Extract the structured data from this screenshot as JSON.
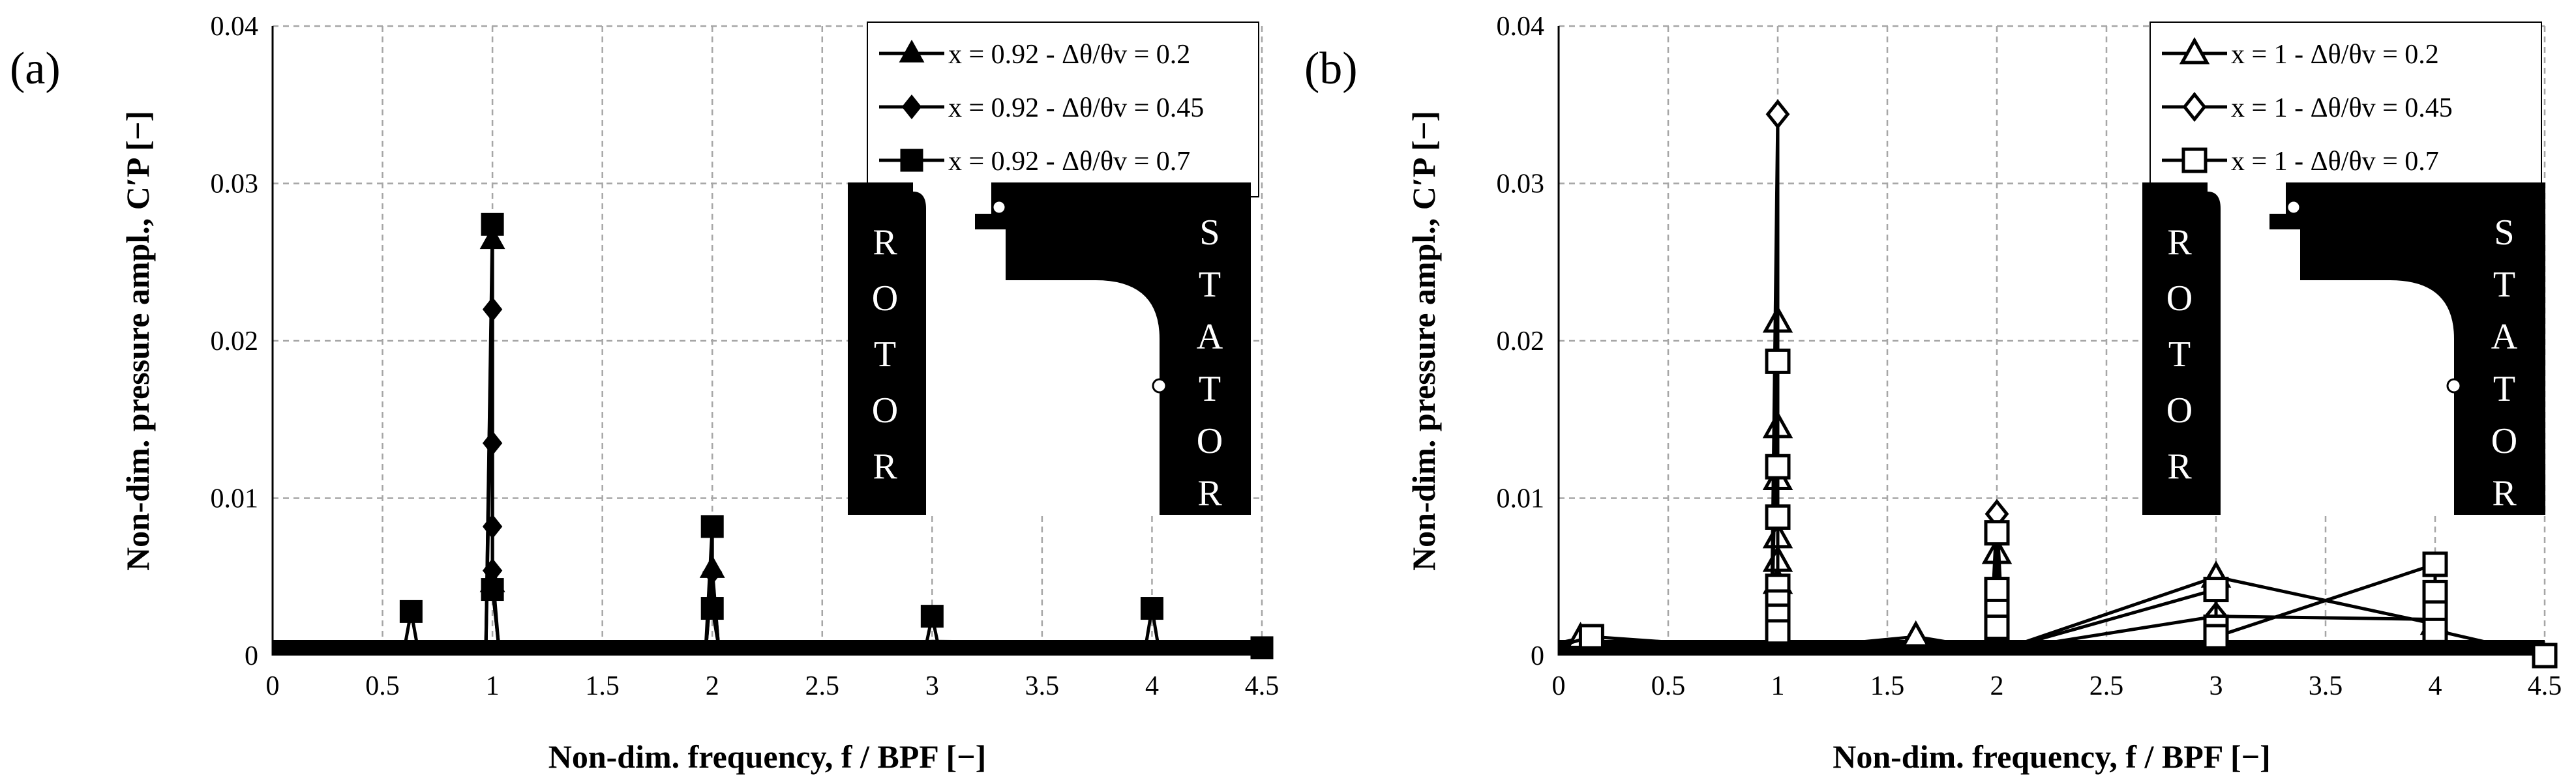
{
  "panels": [
    {
      "label": "(a)",
      "marker_fill": "filled",
      "inset": {
        "rotor_letters": [
          "R",
          "O",
          "T",
          "O",
          "R"
        ],
        "stator_letters": [
          "S",
          "T",
          "A",
          "T",
          "O",
          "R"
        ]
      }
    },
    {
      "label": "(b)",
      "marker_fill": "open",
      "inset": {
        "rotor_letters": [
          "R",
          "O",
          "T",
          "O",
          "R"
        ],
        "stator_letters": [
          "S",
          "T",
          "A",
          "T",
          "O",
          "R"
        ]
      }
    }
  ],
  "colors": {
    "ink": "#000000",
    "grid": "#a6a6a6",
    "background": "#ffffff"
  },
  "chart_data": [
    {
      "type": "line",
      "panel": "(a)",
      "xlabel": "Non-dim. frequency, f / BPF [−]",
      "ylabel": "Non-dim. pressure ampl., C′P [−]",
      "xlim": [
        0,
        4.5
      ],
      "ylim": [
        0,
        0.04
      ],
      "xticks": [
        "0",
        "0.5",
        "1",
        "1.5",
        "2",
        "2.5",
        "3",
        "3.5",
        "4",
        "4.5"
      ],
      "yticks": [
        "0",
        "0.01",
        "0.02",
        "0.03",
        "0.04"
      ],
      "grid": true,
      "legend_position": "top-right",
      "series": [
        {
          "name": "x = 0.92 - Δθ/θv = 0.2",
          "marker": "triangle",
          "points": [
            [
              0.97,
              0.0003
            ],
            [
              1.0,
              0.0264
            ],
            [
              1.0,
              0.0046
            ],
            [
              1.03,
              0.0003
            ],
            [
              1.97,
              0.0003
            ],
            [
              2.0,
              0.0055
            ],
            [
              2.03,
              0.0003
            ],
            [
              3.0,
              0.0009
            ],
            [
              4.0,
              0.0008
            ]
          ]
        },
        {
          "name": "x = 0.92 - Δθ/θv = 0.45",
          "marker": "diamond",
          "points": [
            [
              0.97,
              0.0003
            ],
            [
              1.0,
              0.022
            ],
            [
              1.0,
              0.0135
            ],
            [
              1.0,
              0.0082
            ],
            [
              1.0,
              0.0054
            ],
            [
              1.03,
              0.0003
            ],
            [
              1.97,
              0.0003
            ],
            [
              2.0,
              0.0053
            ],
            [
              2.03,
              0.0003
            ],
            [
              3.0,
              0.0007
            ],
            [
              4.0,
              0.0006
            ]
          ]
        },
        {
          "name": "x = 0.92 - Δθ/θv = 0.7",
          "marker": "square",
          "points": [
            [
              0.0,
              0.0005
            ],
            [
              0.3,
              0.0006
            ],
            [
              0.6,
              0.0005
            ],
            [
              0.63,
              0.0028
            ],
            [
              0.66,
              0.0005
            ],
            [
              0.97,
              0.0005
            ],
            [
              1.0,
              0.0274
            ],
            [
              1.0,
              0.0042
            ],
            [
              1.03,
              0.0005
            ],
            [
              1.3,
              0.0008
            ],
            [
              1.6,
              0.0006
            ],
            [
              1.97,
              0.0005
            ],
            [
              2.0,
              0.0082
            ],
            [
              2.0,
              0.003
            ],
            [
              2.03,
              0.0005
            ],
            [
              2.5,
              0.0005
            ],
            [
              2.97,
              0.0005
            ],
            [
              3.0,
              0.0025
            ],
            [
              3.03,
              0.0005
            ],
            [
              3.5,
              0.0005
            ],
            [
              3.97,
              0.0005
            ],
            [
              4.0,
              0.003
            ],
            [
              4.03,
              0.0005
            ],
            [
              4.5,
              0.0005
            ]
          ]
        }
      ]
    },
    {
      "type": "line",
      "panel": "(b)",
      "xlabel": "Non-dim. frequency, f / BPF [−]",
      "ylabel": "Non-dim. pressure ampl., C′P [−]",
      "xlim": [
        0,
        4.5
      ],
      "ylim": [
        0,
        0.04
      ],
      "xticks": [
        "0",
        "0.5",
        "1",
        "1.5",
        "2",
        "2.5",
        "3",
        "3.5",
        "4",
        "4.5"
      ],
      "yticks": [
        "0",
        "0.01",
        "0.02",
        "0.03",
        "0.04"
      ],
      "grid": true,
      "legend_position": "top-right",
      "series": [
        {
          "name": "x = 1 - Δθ/θv = 0.2",
          "marker": "triangle",
          "points": [
            [
              0.0,
              0.0008
            ],
            [
              0.1,
              0.0011
            ],
            [
              0.2,
              0.0009
            ],
            [
              0.97,
              0.0004
            ],
            [
              1.0,
              0.0212
            ],
            [
              1.0,
              0.0145
            ],
            [
              1.0,
              0.0112
            ],
            [
              1.0,
              0.0075
            ],
            [
              1.0,
              0.006
            ],
            [
              1.0,
              0.0046
            ],
            [
              1.03,
              0.0004
            ],
            [
              1.63,
              0.0012
            ],
            [
              1.97,
              0.0004
            ],
            [
              2.0,
              0.0065
            ],
            [
              2.03,
              0.0004
            ],
            [
              3.0,
              0.005
            ],
            [
              4.0,
              0.002
            ]
          ]
        },
        {
          "name": "x = 1 - Δθ/θv = 0.45",
          "marker": "diamond",
          "points": [
            [
              0.97,
              0.0004
            ],
            [
              1.0,
              0.0344
            ],
            [
              1.0,
              0.001
            ],
            [
              1.03,
              0.0004
            ],
            [
              1.97,
              0.0004
            ],
            [
              2.0,
              0.009
            ],
            [
              2.03,
              0.0004
            ],
            [
              2.23,
              0.0008
            ],
            [
              3.0,
              0.0025
            ],
            [
              4.0,
              0.0023
            ]
          ]
        },
        {
          "name": "x = 1 - Δθ/θv = 0.7",
          "marker": "square",
          "points": [
            [
              0.0,
              0.0006
            ],
            [
              0.15,
              0.0012
            ],
            [
              0.97,
              0.0004
            ],
            [
              1.0,
              0.0187
            ],
            [
              1.0,
              0.012
            ],
            [
              1.0,
              0.0088
            ],
            [
              1.0,
              0.0044
            ],
            [
              1.0,
              0.0034
            ],
            [
              1.0,
              0.0025
            ],
            [
              1.0,
              0.0015
            ],
            [
              1.03,
              0.0004
            ],
            [
              1.97,
              0.0004
            ],
            [
              2.0,
              0.0078
            ],
            [
              2.0,
              0.0042
            ],
            [
              2.0,
              0.0028
            ],
            [
              2.0,
              0.0018
            ],
            [
              2.03,
              0.0004
            ],
            [
              3.0,
              0.0042
            ],
            [
              3.0,
              0.0018
            ],
            [
              3.0,
              0.0012
            ],
            [
              4.0,
              0.0058
            ],
            [
              4.0,
              0.004
            ],
            [
              4.0,
              0.0027
            ],
            [
              4.0,
              0.0016
            ],
            [
              4.5,
              0.0
            ]
          ]
        }
      ]
    }
  ]
}
